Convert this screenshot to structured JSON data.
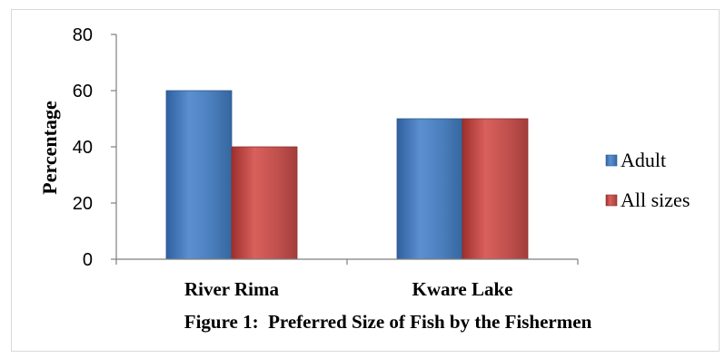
{
  "chart_data": {
    "type": "bar",
    "title": "",
    "caption": "Figure 1:  Preferred Size of Fish by the Fishermen",
    "xlabel": "",
    "ylabel": "Percentage",
    "categories": [
      "River Rima",
      "Kware Lake"
    ],
    "series": [
      {
        "name": "Adult",
        "values": [
          60,
          50
        ],
        "color": "#4a7ebb"
      },
      {
        "name": "All sizes",
        "values": [
          40,
          50
        ],
        "color": "#c0504d"
      }
    ],
    "ylim": [
      0,
      80
    ],
    "yticks": [
      0,
      20,
      40,
      60,
      80
    ],
    "grid": false,
    "legend_position": "right"
  }
}
